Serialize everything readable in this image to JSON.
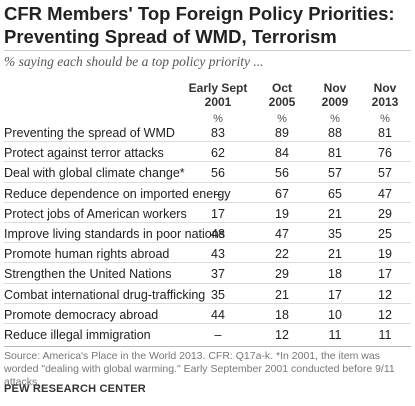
{
  "title": "CFR Members' Top Foreign Policy Priorities: Preventing Spread of WMD, Terrorism",
  "subtitle": "% saying each should be a top policy priority ...",
  "columns": [
    {
      "line1": "Early Sept",
      "line2": "2001"
    },
    {
      "line1": "Oct",
      "line2": "2005"
    },
    {
      "line1": "Nov",
      "line2": "2009"
    },
    {
      "line1": "Nov",
      "line2": "2013"
    }
  ],
  "unit": "%",
  "source": "Source: America's Place in the World 2013. CFR: Q17a-k. *In 2001, the item was worded \"dealing with global warming.\" Early September 2001 conducted before 9/11 attacks.",
  "brand": "PEW RESEARCH CENTER",
  "chart_data": {
    "type": "table",
    "title": "CFR Members' Top Foreign Policy Priorities: Preventing Spread of WMD, Terrorism",
    "categories": [
      "Early Sept 2001",
      "Oct 2005",
      "Nov 2009",
      "Nov 2013"
    ],
    "rows": [
      {
        "label": "Preventing the spread of WMD",
        "values": [
          "83",
          "89",
          "88",
          "81"
        ]
      },
      {
        "label": "Protect against terror attacks",
        "values": [
          "62",
          "84",
          "81",
          "76"
        ]
      },
      {
        "label": "Deal with global climate change*",
        "values": [
          "56",
          "56",
          "57",
          "57"
        ]
      },
      {
        "label": "Reduce dependence on imported energy",
        "values": [
          "–",
          "67",
          "65",
          "47"
        ]
      },
      {
        "label": "Protect jobs of American workers",
        "values": [
          "17",
          "19",
          "21",
          "29"
        ]
      },
      {
        "label": "Improve living standards in poor nations",
        "values": [
          "48",
          "47",
          "35",
          "25"
        ]
      },
      {
        "label": "Promote human rights abroad",
        "values": [
          "43",
          "22",
          "21",
          "19"
        ]
      },
      {
        "label": "Strengthen the United Nations",
        "values": [
          "37",
          "29",
          "18",
          "17"
        ]
      },
      {
        "label": "Combat international drug-trafficking",
        "values": [
          "35",
          "21",
          "17",
          "12"
        ]
      },
      {
        "label": "Promote democracy abroad",
        "values": [
          "44",
          "18",
          "10",
          "12"
        ]
      },
      {
        "label": "Reduce illegal immigration",
        "values": [
          "–",
          "12",
          "11",
          "11"
        ]
      }
    ]
  }
}
